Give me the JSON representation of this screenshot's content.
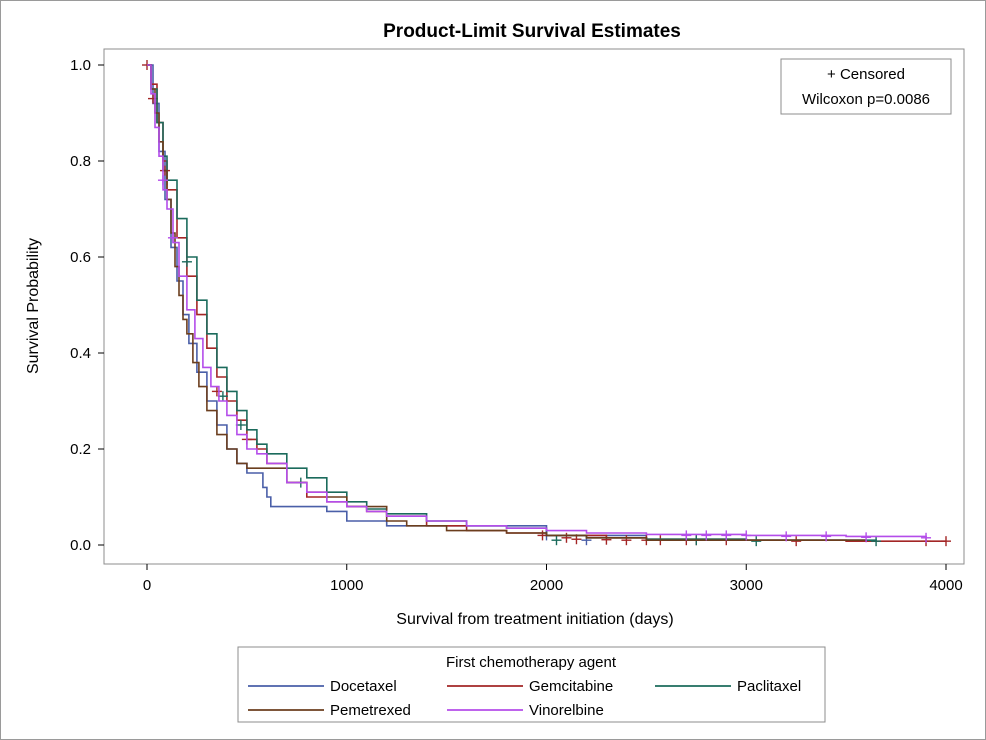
{
  "chart_data": {
    "type": "line",
    "title": "Product-Limit Survival Estimates",
    "xlabel": "Survival from treatment initiation (days)",
    "ylabel": "Survival Probability",
    "xlim": [
      0,
      4000
    ],
    "ylim": [
      0,
      1
    ],
    "x_ticks": [
      "0",
      "1000",
      "2000",
      "3000",
      "4000"
    ],
    "y_ticks": [
      "0.0",
      "0.2",
      "0.4",
      "0.6",
      "0.8",
      "1.0"
    ],
    "inset": [
      "+ Censored",
      "Wilcoxon p=0.0086"
    ],
    "legend_title": "First chemotherapy agent",
    "legend_position": "bottom",
    "grid": false,
    "series": [
      {
        "name": "Docetaxel",
        "color": "#4a5fa8",
        "points": [
          [
            0,
            1.0
          ],
          [
            30,
            0.92
          ],
          [
            60,
            0.82
          ],
          [
            90,
            0.72
          ],
          [
            120,
            0.62
          ],
          [
            150,
            0.55
          ],
          [
            180,
            0.48
          ],
          [
            210,
            0.42
          ],
          [
            250,
            0.36
          ],
          [
            300,
            0.3
          ],
          [
            350,
            0.25
          ],
          [
            400,
            0.2
          ],
          [
            450,
            0.17
          ],
          [
            500,
            0.15
          ],
          [
            550,
            0.15
          ],
          [
            580,
            0.12
          ],
          [
            600,
            0.1
          ],
          [
            620,
            0.08
          ],
          [
            700,
            0.08
          ],
          [
            800,
            0.08
          ],
          [
            900,
            0.07
          ],
          [
            1000,
            0.05
          ],
          [
            1200,
            0.04
          ],
          [
            1400,
            0.04
          ],
          [
            1500,
            0.04
          ],
          [
            1700,
            0.04
          ],
          [
            1800,
            0.04
          ],
          [
            1900,
            0.04
          ],
          [
            1980,
            0.04
          ],
          [
            2000,
            0.02
          ],
          [
            2500,
            0.01
          ],
          [
            3000,
            0.01
          ],
          [
            3600,
            0.01
          ]
        ],
        "censored": [
          [
            2000,
            0.02
          ],
          [
            2200,
            0.01
          ]
        ]
      },
      {
        "name": "Gemcitabine",
        "color": "#a32626",
        "points": [
          [
            0,
            1.0
          ],
          [
            20,
            0.96
          ],
          [
            50,
            0.88
          ],
          [
            80,
            0.8
          ],
          [
            100,
            0.74
          ],
          [
            150,
            0.64
          ],
          [
            200,
            0.56
          ],
          [
            250,
            0.48
          ],
          [
            300,
            0.41
          ],
          [
            350,
            0.35
          ],
          [
            400,
            0.3
          ],
          [
            450,
            0.26
          ],
          [
            500,
            0.22
          ],
          [
            550,
            0.2
          ],
          [
            600,
            0.17
          ],
          [
            700,
            0.13
          ],
          [
            800,
            0.1
          ],
          [
            900,
            0.09
          ],
          [
            1000,
            0.08
          ],
          [
            1100,
            0.07
          ],
          [
            1200,
            0.06
          ],
          [
            1400,
            0.04
          ],
          [
            1600,
            0.03
          ],
          [
            1800,
            0.025
          ],
          [
            2000,
            0.02
          ],
          [
            2300,
            0.015
          ],
          [
            2500,
            0.012
          ],
          [
            3000,
            0.01
          ],
          [
            3500,
            0.008
          ],
          [
            4000,
            0.008
          ]
        ],
        "censored": [
          [
            0,
            1.0
          ],
          [
            30,
            0.93
          ],
          [
            90,
            0.78
          ],
          [
            100,
            0.76
          ],
          [
            350,
            0.32
          ],
          [
            500,
            0.22
          ],
          [
            1980,
            0.02
          ],
          [
            2100,
            0.015
          ],
          [
            2150,
            0.012
          ],
          [
            2300,
            0.011
          ],
          [
            2400,
            0.01
          ],
          [
            2500,
            0.01
          ],
          [
            2570,
            0.01
          ],
          [
            2700,
            0.01
          ],
          [
            2750,
            0.01
          ],
          [
            2900,
            0.01
          ],
          [
            3250,
            0.008
          ],
          [
            3900,
            0.008
          ],
          [
            4000,
            0.008
          ]
        ]
      },
      {
        "name": "Paclitaxel",
        "color": "#1b6b5c",
        "points": [
          [
            0,
            1.0
          ],
          [
            20,
            0.95
          ],
          [
            50,
            0.88
          ],
          [
            80,
            0.81
          ],
          [
            100,
            0.76
          ],
          [
            150,
            0.68
          ],
          [
            200,
            0.6
          ],
          [
            250,
            0.51
          ],
          [
            300,
            0.44
          ],
          [
            350,
            0.37
          ],
          [
            400,
            0.32
          ],
          [
            450,
            0.28
          ],
          [
            500,
            0.24
          ],
          [
            550,
            0.21
          ],
          [
            600,
            0.19
          ],
          [
            700,
            0.16
          ],
          [
            800,
            0.14
          ],
          [
            900,
            0.11
          ],
          [
            1000,
            0.09
          ],
          [
            1100,
            0.075
          ],
          [
            1200,
            0.065
          ],
          [
            1400,
            0.05
          ],
          [
            1600,
            0.04
          ],
          [
            1800,
            0.035
          ],
          [
            2000,
            0.02
          ],
          [
            2200,
            0.015
          ],
          [
            2500,
            0.012
          ],
          [
            3000,
            0.01
          ],
          [
            3650,
            0.008
          ]
        ],
        "censored": [
          [
            200,
            0.59
          ],
          [
            380,
            0.31
          ],
          [
            470,
            0.25
          ],
          [
            770,
            0.13
          ],
          [
            2050,
            0.01
          ],
          [
            2750,
            0.01
          ],
          [
            3050,
            0.008
          ],
          [
            3650,
            0.008
          ]
        ]
      },
      {
        "name": "Pemetrexed",
        "color": "#6b3e1e",
        "points": [
          [
            0,
            1.0
          ],
          [
            20,
            0.95
          ],
          [
            40,
            0.9
          ],
          [
            60,
            0.84
          ],
          [
            80,
            0.78
          ],
          [
            100,
            0.72
          ],
          [
            120,
            0.65
          ],
          [
            140,
            0.58
          ],
          [
            160,
            0.52
          ],
          [
            180,
            0.47
          ],
          [
            200,
            0.44
          ],
          [
            230,
            0.38
          ],
          [
            260,
            0.33
          ],
          [
            300,
            0.28
          ],
          [
            350,
            0.23
          ],
          [
            400,
            0.2
          ],
          [
            450,
            0.17
          ],
          [
            500,
            0.16
          ],
          [
            600,
            0.16
          ],
          [
            700,
            0.13
          ],
          [
            800,
            0.11
          ],
          [
            900,
            0.1
          ],
          [
            1000,
            0.08
          ],
          [
            1200,
            0.05
          ],
          [
            1300,
            0.04
          ],
          [
            1500,
            0.03
          ],
          [
            1800,
            0.025
          ],
          [
            2000,
            0.02
          ],
          [
            2200,
            0.015
          ],
          [
            2500,
            0.01
          ],
          [
            3000,
            0.01
          ],
          [
            3600,
            0.008
          ]
        ],
        "censored": []
      },
      {
        "name": "Vinorelbine",
        "color": "#b44dea",
        "points": [
          [
            0,
            1.0
          ],
          [
            20,
            0.94
          ],
          [
            40,
            0.87
          ],
          [
            60,
            0.81
          ],
          [
            80,
            0.74
          ],
          [
            100,
            0.7
          ],
          [
            130,
            0.63
          ],
          [
            160,
            0.56
          ],
          [
            200,
            0.49
          ],
          [
            240,
            0.43
          ],
          [
            280,
            0.37
          ],
          [
            320,
            0.33
          ],
          [
            360,
            0.3
          ],
          [
            400,
            0.27
          ],
          [
            450,
            0.23
          ],
          [
            500,
            0.2
          ],
          [
            550,
            0.19
          ],
          [
            600,
            0.17
          ],
          [
            700,
            0.13
          ],
          [
            800,
            0.11
          ],
          [
            900,
            0.09
          ],
          [
            1000,
            0.08
          ],
          [
            1100,
            0.07
          ],
          [
            1200,
            0.06
          ],
          [
            1400,
            0.05
          ],
          [
            1600,
            0.04
          ],
          [
            1800,
            0.035
          ],
          [
            2000,
            0.03
          ],
          [
            2200,
            0.025
          ],
          [
            2500,
            0.022
          ],
          [
            3000,
            0.02
          ],
          [
            3500,
            0.018
          ],
          [
            3900,
            0.015
          ]
        ],
        "censored": [
          [
            80,
            0.76
          ],
          [
            130,
            0.64
          ],
          [
            2700,
            0.02
          ],
          [
            2800,
            0.02
          ],
          [
            2900,
            0.02
          ],
          [
            3000,
            0.02
          ],
          [
            3200,
            0.018
          ],
          [
            3400,
            0.018
          ],
          [
            3600,
            0.016
          ],
          [
            3900,
            0.015
          ]
        ]
      }
    ]
  }
}
